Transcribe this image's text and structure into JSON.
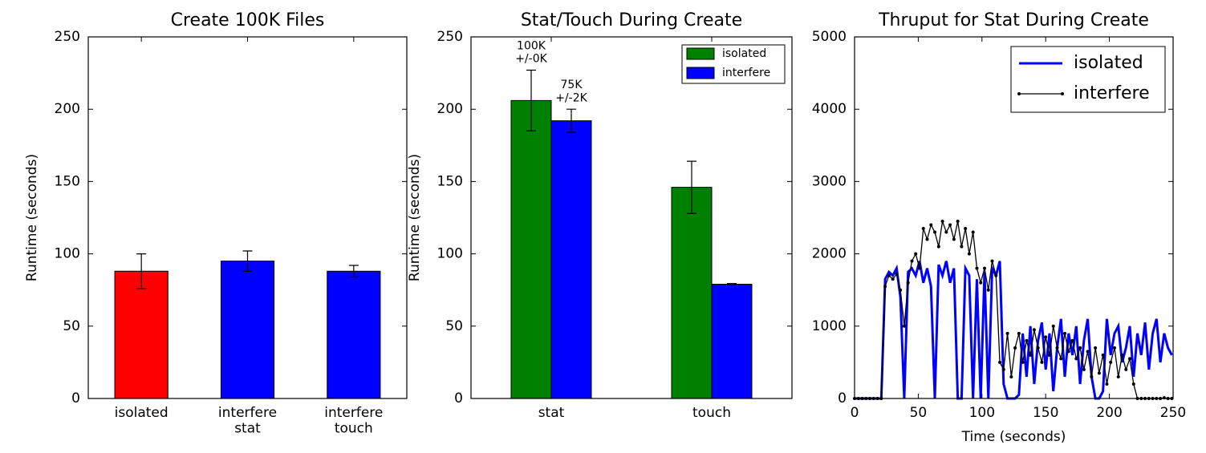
{
  "chart_data": [
    {
      "type": "bar",
      "title": "Create 100K Files",
      "ylabel": "Runtime (seconds)",
      "categories": [
        "isolated",
        "interfere\nstat",
        "interfere\ntouch"
      ],
      "values": [
        88,
        95,
        88
      ],
      "errors": [
        12,
        7,
        4
      ],
      "colors": [
        "#ff0000",
        "#0000ff",
        "#0000ff"
      ],
      "ylim": [
        0,
        250
      ],
      "yticks": [
        0,
        50,
        100,
        150,
        200,
        250
      ]
    },
    {
      "type": "bar",
      "title": "Stat/Touch During Create",
      "ylabel": "Runtime (seconds)",
      "categories": [
        "stat",
        "touch"
      ],
      "series": [
        {
          "name": "isolated",
          "color": "#008000",
          "values": [
            206,
            146
          ],
          "errors": [
            21,
            18
          ]
        },
        {
          "name": "interfere",
          "color": "#0000ff",
          "values": [
            192,
            79
          ],
          "errors": [
            8,
            0.5
          ]
        }
      ],
      "annotations": [
        "100K\n+/-0K",
        "75K\n+/-2K"
      ],
      "legend": "upper right",
      "ylim": [
        0,
        250
      ],
      "yticks": [
        0,
        50,
        100,
        150,
        200,
        250
      ]
    },
    {
      "type": "line",
      "title": "Thruput for Stat During Create",
      "xlabel": "Time (seconds)",
      "x": [
        0,
        3,
        6,
        9,
        12,
        15,
        18,
        21,
        24,
        27,
        30,
        33,
        36,
        39,
        42,
        45,
        48,
        51,
        54,
        57,
        60,
        63,
        66,
        69,
        72,
        75,
        78,
        81,
        84,
        87,
        90,
        93,
        96,
        99,
        102,
        105,
        108,
        111,
        114,
        117,
        120,
        123,
        126,
        129,
        132,
        135,
        138,
        141,
        144,
        147,
        150,
        153,
        156,
        159,
        162,
        165,
        168,
        171,
        174,
        177,
        180,
        183,
        186,
        189,
        192,
        195,
        198,
        201,
        204,
        207,
        210,
        213,
        216,
        219,
        222,
        225,
        228,
        231,
        234,
        237,
        240,
        243,
        246,
        249
      ],
      "series": [
        {
          "name": "isolated",
          "color": "#0000ff",
          "values": [
            0,
            0,
            0,
            0,
            0,
            0,
            0,
            0,
            1650,
            1750,
            1700,
            1800,
            1400,
            0,
            1750,
            1800,
            1700,
            1900,
            1600,
            1800,
            1550,
            0,
            1850,
            1700,
            1900,
            1600,
            1800,
            0,
            0,
            1800,
            1700,
            0,
            1650,
            0,
            1750,
            0,
            1800,
            1700,
            1900,
            200,
            0,
            0,
            0,
            50,
            900,
            300,
            1000,
            200,
            800,
            1050,
            400,
            900,
            100,
            700,
            1100,
            300,
            900,
            600,
            1000,
            200,
            800,
            1100,
            300,
            0,
            0,
            100,
            1100,
            600,
            900,
            1000,
            500,
            700,
            1000,
            300,
            900,
            600,
            1050,
            400,
            900,
            1100,
            500,
            900,
            700,
            600
          ]
        },
        {
          "name": "interfere",
          "color": "#000000",
          "markers": true,
          "values": [
            0,
            0,
            0,
            0,
            0,
            0,
            0,
            0,
            1550,
            1700,
            1650,
            1720,
            1500,
            1000,
            1600,
            1900,
            2000,
            1800,
            2350,
            2200,
            2400,
            2300,
            2100,
            2450,
            2300,
            2400,
            2200,
            2450,
            2100,
            2350,
            2000,
            2300,
            1800,
            1600,
            1800,
            1500,
            1900,
            1700,
            500,
            400,
            900,
            300,
            700,
            900,
            500,
            800,
            600,
            950,
            700,
            500,
            850,
            600,
            1000,
            700,
            550,
            900,
            650,
            800,
            550,
            700,
            400,
            650,
            300,
            700,
            350,
            600,
            200,
            500,
            700,
            300,
            600,
            400,
            550,
            200,
            0,
            0,
            0,
            0,
            0,
            0,
            0,
            10,
            0,
            0
          ]
        }
      ],
      "legend": "upper right",
      "xlim": [
        0,
        250
      ],
      "xticks": [
        0,
        50,
        100,
        150,
        200,
        250
      ],
      "ylim": [
        0,
        5000
      ],
      "yticks": [
        0,
        1000,
        2000,
        3000,
        4000,
        5000
      ]
    }
  ]
}
